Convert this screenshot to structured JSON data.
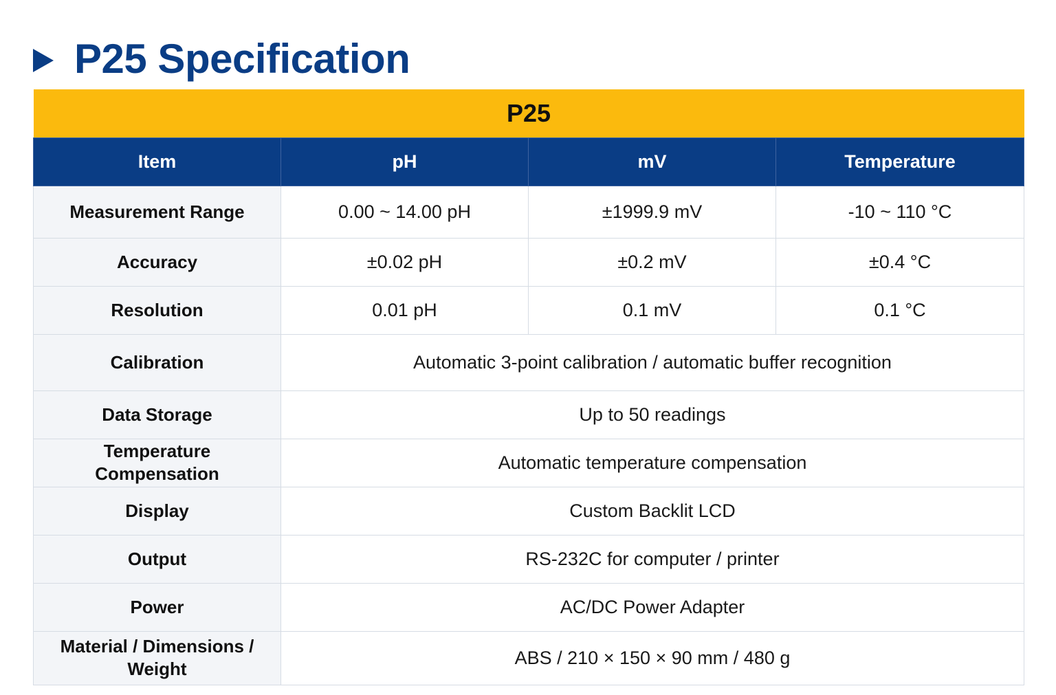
{
  "page": {
    "title": "P25 Specification"
  },
  "table": {
    "model": "P25",
    "headers": [
      "Item",
      "pH",
      "mV",
      "Temperature"
    ],
    "rows": [
      {
        "label": "Measurement Range",
        "ph": "0.00 ~ 14.00 pH",
        "mv": "±1999.9 mV",
        "temp": "-10 ~ 110 °C"
      },
      {
        "label": "Accuracy",
        "ph": "±0.02 pH",
        "mv": "±0.2 mV",
        "temp": "±0.4 °C"
      },
      {
        "label": "Resolution",
        "ph": "0.01 pH",
        "mv": "0.1 mV",
        "temp": "0.1 °C"
      },
      {
        "label": "Calibration",
        "value": "Automatic 3-point calibration / automatic buffer recognition"
      },
      {
        "label": "Data Storage",
        "value": "Up to 50 readings"
      },
      {
        "label": "Temperature Compensation",
        "value": "Automatic temperature compensation"
      },
      {
        "label": "Display",
        "value": "Custom Backlit LCD"
      },
      {
        "label": "Output",
        "value": "RS-232C for computer / printer"
      },
      {
        "label": "Power",
        "value": "AC/DC Power Adapter"
      },
      {
        "label": "Material / Dimensions / Weight",
        "value": "ABS / 210 × 150 × 90 mm / 480 g"
      }
    ]
  },
  "colors": {
    "title_blue": "#0a3d85",
    "model_band_yellow": "#fbba0d",
    "header_blue": "#0a3d85",
    "label_bg": "#f3f5f8",
    "border": "#d6dce4"
  },
  "icons": {
    "title_marker": "triangle-right-icon"
  }
}
